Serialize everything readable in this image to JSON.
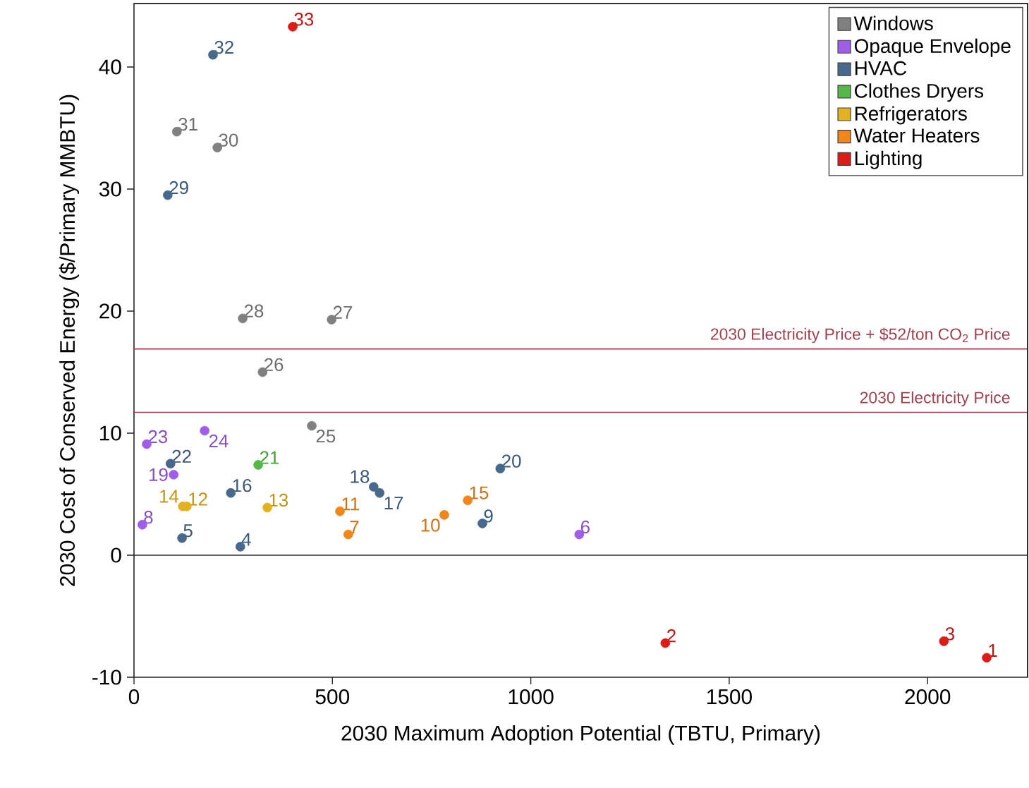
{
  "chart_data": {
    "type": "scatter",
    "xlabel": "2030 Maximum Adoption Potential (TBTU, Primary)",
    "ylabel": "2030 Cost of Conserved Energy ($/Primary MMBTU)",
    "xlim": [
      0,
      2252
    ],
    "ylim": [
      -10,
      45.2
    ],
    "xticks": [
      0,
      500,
      1000,
      1500,
      2000
    ],
    "yticks": [
      -10,
      0,
      10,
      20,
      30,
      40
    ],
    "grid": false,
    "legend": "top right",
    "marker": "circle",
    "ref_lines": [
      {
        "axis": "y",
        "value": 0,
        "color": "#333333"
      },
      {
        "axis": "y",
        "value": 11.7,
        "label": "2030 Electricity Price",
        "color": "#a0404e"
      },
      {
        "axis": "y",
        "value": 16.9,
        "label": "2030 Electricity Price + $52/ton CO$_{2}$ Price",
        "color": "#a0404e"
      }
    ],
    "series": [
      {
        "name": "Windows",
        "color": "#808080",
        "x": [
          448,
          324,
          498,
          274,
          210,
          108
        ],
        "values": [
          10.6,
          15.0,
          19.3,
          19.4,
          33.4,
          34.7
        ]
      },
      {
        "name": "Opaque Envelope",
        "color": "#a05ee8",
        "x": [
          1122,
          21,
          100,
          32,
          178
        ],
        "values": [
          1.7,
          2.5,
          6.6,
          9.1,
          10.2
        ]
      },
      {
        "name": "HVAC",
        "color": "#46698c",
        "x": [
          268,
          121,
          878,
          244,
          619,
          604,
          923,
          92,
          85,
          199
        ],
        "values": [
          0.7,
          1.4,
          2.6,
          5.1,
          5.1,
          5.6,
          7.1,
          7.5,
          29.5,
          41.0
        ]
      },
      {
        "name": "Clothes Dryers",
        "color": "#55b848",
        "x": [
          313
        ],
        "values": [
          7.4
        ]
      },
      {
        "name": "Refrigerators",
        "color": "#e3b220",
        "x": [
          133,
          336,
          123
        ],
        "values": [
          4.0,
          3.9,
          4.0
        ]
      },
      {
        "name": "Water Heaters",
        "color": "#f0861c",
        "x": [
          540,
          782,
          519,
          841
        ],
        "values": [
          1.7,
          3.3,
          3.6,
          4.5
        ]
      },
      {
        "name": "Lighting",
        "color": "#dd1c1a",
        "x": [
          2149,
          1339,
          2041,
          400
        ],
        "values": [
          -8.4,
          -7.2,
          -7.05,
          43.3
        ]
      }
    ],
    "annotations": [
      {
        "text": "25",
        "x": 448,
        "y": 10.6
      },
      {
        "text": "26",
        "x": 324,
        "y": 15.0
      },
      {
        "text": "27",
        "x": 498,
        "y": 19.3
      },
      {
        "text": "28",
        "x": 274,
        "y": 19.4
      },
      {
        "text": "30",
        "x": 210,
        "y": 33.4
      },
      {
        "text": "31",
        "x": 108,
        "y": 34.7
      },
      {
        "text": "6",
        "x": 1122,
        "y": 1.7
      },
      {
        "text": "8",
        "x": 21,
        "y": 2.5
      },
      {
        "text": "19",
        "x": 100,
        "y": 6.6
      },
      {
        "text": "23",
        "x": 32,
        "y": 9.1
      },
      {
        "text": "24",
        "x": 178,
        "y": 10.2
      },
      {
        "text": "4",
        "x": 268,
        "y": 0.7
      },
      {
        "text": "5",
        "x": 121,
        "y": 1.4
      },
      {
        "text": "9",
        "x": 878,
        "y": 2.6
      },
      {
        "text": "16",
        "x": 244,
        "y": 5.1
      },
      {
        "text": "17",
        "x": 619,
        "y": 5.1
      },
      {
        "text": "18",
        "x": 604,
        "y": 5.6
      },
      {
        "text": "20",
        "x": 923,
        "y": 7.1
      },
      {
        "text": "22",
        "x": 92,
        "y": 7.5
      },
      {
        "text": "29",
        "x": 85,
        "y": 29.5
      },
      {
        "text": "32",
        "x": 199,
        "y": 41.0
      },
      {
        "text": "21",
        "x": 313,
        "y": 7.4
      },
      {
        "text": "12",
        "x": 133,
        "y": 4.0
      },
      {
        "text": "13",
        "x": 336,
        "y": 3.9
      },
      {
        "text": "14",
        "x": 123,
        "y": 4.0
      },
      {
        "text": "7",
        "x": 540,
        "y": 1.7
      },
      {
        "text": "10",
        "x": 782,
        "y": 3.3
      },
      {
        "text": "11",
        "x": 519,
        "y": 3.6
      },
      {
        "text": "15",
        "x": 841,
        "y": 4.5
      },
      {
        "text": "1",
        "x": 2149,
        "y": -8.4
      },
      {
        "text": "2",
        "x": 1339,
        "y": -7.2
      },
      {
        "text": "3",
        "x": 2041,
        "y": -7.05
      },
      {
        "text": "33",
        "x": 400,
        "y": 43.3
      }
    ]
  }
}
